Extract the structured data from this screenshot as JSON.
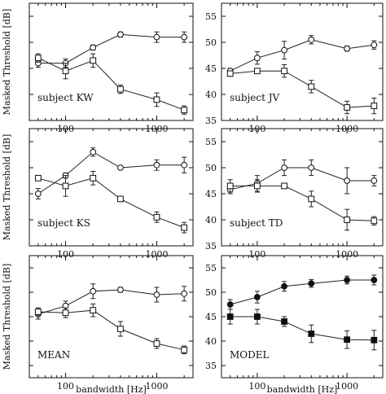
{
  "figure": {
    "ylabel": "Masked Threshold [dB]",
    "xlabel": "bandwidth [Hz]"
  },
  "chart_data": [
    {
      "type": "line",
      "panel": "subject KW",
      "label": "subject KW",
      "x": [
        50,
        100,
        200,
        400,
        1000,
        2000
      ],
      "xscale": "log",
      "xlim": [
        40,
        2500
      ],
      "ylim": [
        35,
        57.5
      ],
      "xticks": [
        100,
        1000
      ],
      "yticks": [
        35,
        40,
        45,
        50,
        55
      ],
      "show_xticklabels": true,
      "show_yticklabels": false,
      "show_ylabel": true,
      "show_xlabel": false,
      "series": [
        {
          "marker": "circle-open",
          "values": [
            46.0,
            46.0,
            49.0,
            51.5,
            51.0,
            51.0
          ],
          "errors": [
            0.8,
            0.8,
            0.5,
            0.5,
            1.0,
            1.0
          ]
        },
        {
          "marker": "square-open",
          "values": [
            47.0,
            44.5,
            46.5,
            41.0,
            39.0,
            37.0
          ],
          "errors": [
            0.8,
            1.5,
            1.3,
            0.8,
            1.3,
            0.8
          ]
        }
      ]
    },
    {
      "type": "line",
      "panel": "subject JV",
      "label": "subject JV",
      "x": [
        50,
        100,
        200,
        400,
        1000,
        2000
      ],
      "xscale": "log",
      "xlim": [
        40,
        2500
      ],
      "ylim": [
        35,
        57.5
      ],
      "xticks": [
        100,
        1000
      ],
      "yticks": [
        35,
        40,
        45,
        50,
        55
      ],
      "show_xticklabels": true,
      "show_yticklabels": true,
      "show_ylabel": false,
      "show_xlabel": false,
      "series": [
        {
          "marker": "circle-open",
          "values": [
            44.5,
            47.0,
            48.5,
            50.5,
            48.8,
            49.5
          ],
          "errors": [
            0.5,
            1.2,
            1.7,
            0.8,
            0.5,
            0.8
          ]
        },
        {
          "marker": "square-open",
          "values": [
            44.0,
            44.5,
            44.5,
            41.5,
            37.5,
            37.8
          ],
          "errors": [
            0.5,
            0.5,
            1.2,
            1.2,
            1.2,
            1.5
          ]
        }
      ]
    },
    {
      "type": "line",
      "panel": "subject KS",
      "label": "subject KS",
      "x": [
        50,
        100,
        200,
        400,
        1000,
        2000
      ],
      "xscale": "log",
      "xlim": [
        40,
        2500
      ],
      "ylim": [
        35,
        57.5
      ],
      "xticks": [
        100,
        1000
      ],
      "yticks": [
        35,
        40,
        45,
        50,
        55
      ],
      "show_xticklabels": true,
      "show_yticklabels": false,
      "show_ylabel": true,
      "show_xlabel": false,
      "series": [
        {
          "marker": "circle-open",
          "values": [
            45.0,
            48.5,
            53.0,
            50.0,
            50.5,
            50.5
          ],
          "errors": [
            1.0,
            0.5,
            0.8,
            0.3,
            1.0,
            1.5
          ]
        },
        {
          "marker": "square-open",
          "values": [
            48.0,
            46.5,
            48.0,
            44.0,
            40.5,
            38.5
          ],
          "errors": [
            0.5,
            2.0,
            1.3,
            0.5,
            1.0,
            1.0
          ]
        }
      ]
    },
    {
      "type": "line",
      "panel": "subject TD",
      "label": "subject TD",
      "x": [
        50,
        100,
        200,
        400,
        1000,
        2000
      ],
      "xscale": "log",
      "xlim": [
        40,
        2500
      ],
      "ylim": [
        35,
        57.5
      ],
      "xticks": [
        100,
        1000
      ],
      "yticks": [
        35,
        40,
        45,
        50,
        55
      ],
      "show_xticklabels": true,
      "show_yticklabels": true,
      "show_ylabel": false,
      "show_xlabel": false,
      "series": [
        {
          "marker": "circle-open",
          "values": [
            45.8,
            47.0,
            50.0,
            50.0,
            47.5,
            47.5
          ],
          "errors": [
            0.8,
            1.5,
            1.5,
            1.5,
            2.5,
            1.0
          ]
        },
        {
          "marker": "square-open",
          "values": [
            46.5,
            46.5,
            46.5,
            44.0,
            40.0,
            39.8
          ],
          "errors": [
            1.2,
            1.2,
            0.5,
            1.5,
            2.0,
            0.8
          ]
        }
      ]
    },
    {
      "type": "line",
      "panel": "MEAN",
      "label": "MEAN",
      "x": [
        50,
        100,
        200,
        400,
        1000,
        2000
      ],
      "xscale": "log",
      "xlim": [
        40,
        2500
      ],
      "ylim": [
        32.5,
        57.5
      ],
      "xticks": [
        100,
        1000
      ],
      "yticks": [
        35,
        40,
        45,
        50,
        55
      ],
      "show_xticklabels": true,
      "show_yticklabels": false,
      "show_ylabel": true,
      "show_xlabel": true,
      "series": [
        {
          "marker": "circle-open",
          "values": [
            45.5,
            47.2,
            50.2,
            50.5,
            49.5,
            49.7
          ],
          "errors": [
            1.0,
            1.0,
            1.5,
            0.5,
            1.5,
            1.5
          ]
        },
        {
          "marker": "square-open",
          "values": [
            46.0,
            45.8,
            46.3,
            42.5,
            39.5,
            38.2
          ],
          "errors": [
            0.8,
            1.0,
            1.3,
            1.5,
            1.0,
            0.8
          ]
        }
      ]
    },
    {
      "type": "line",
      "panel": "MODEL",
      "label": "MODEL",
      "x": [
        50,
        100,
        200,
        400,
        1000,
        2000
      ],
      "xscale": "log",
      "xlim": [
        40,
        2500
      ],
      "ylim": [
        32.5,
        57.5
      ],
      "xticks": [
        100,
        1000
      ],
      "yticks": [
        35,
        40,
        45,
        50,
        55
      ],
      "show_xticklabels": true,
      "show_yticklabels": true,
      "show_ylabel": false,
      "show_xlabel": true,
      "series": [
        {
          "marker": "circle-filled",
          "values": [
            47.5,
            49.0,
            51.2,
            51.8,
            52.5,
            52.5
          ],
          "errors": [
            1.0,
            1.2,
            1.0,
            0.8,
            0.8,
            1.0
          ]
        },
        {
          "marker": "square-filled",
          "values": [
            45.0,
            45.0,
            44.0,
            41.5,
            40.3,
            40.2
          ],
          "errors": [
            1.5,
            1.5,
            1.0,
            1.8,
            1.8,
            2.0
          ]
        }
      ]
    }
  ]
}
